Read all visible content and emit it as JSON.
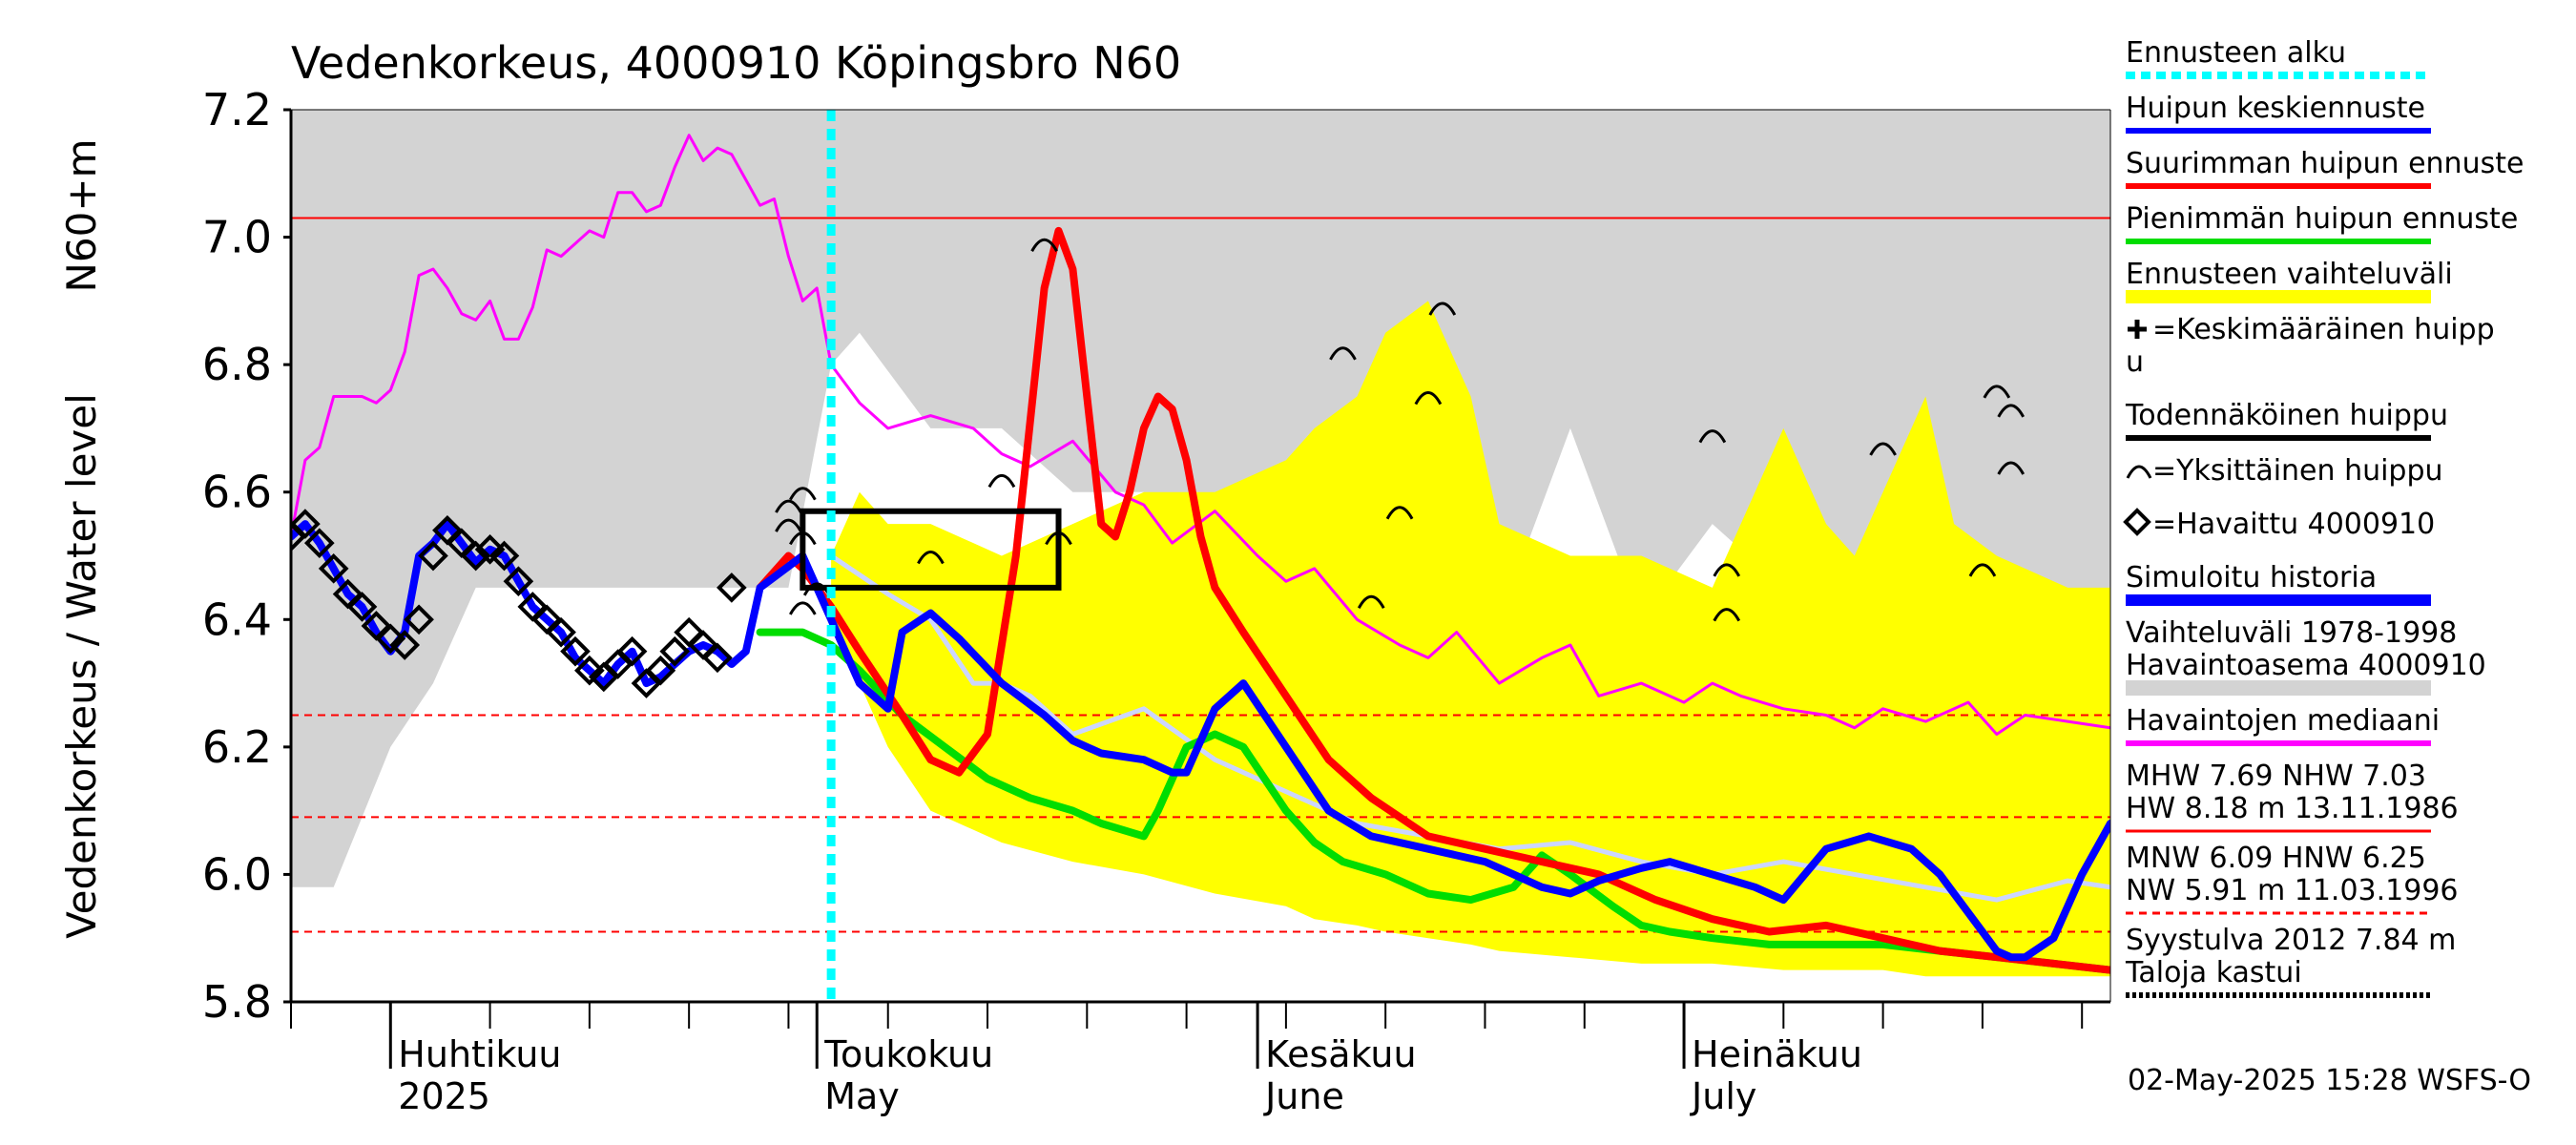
{
  "chart_data": {
    "type": "line",
    "title": "Vedenkorkeus, 4000910 Köpingsbro N60",
    "ylabel_1": "N60+m",
    "ylabel_2": "Vedenkorkeus / Water level",
    "ylim": [
      5.8,
      7.2
    ],
    "yticks": [
      "5.8",
      "6.0",
      "6.2",
      "6.4",
      "6.6",
      "6.8",
      "7.0",
      "7.2"
    ],
    "xlim": [
      "2025-03-25",
      "2025-08-01"
    ],
    "month_labels": [
      {
        "fi": "Huhtikuu",
        "en": "2025",
        "date": "2025-04-01"
      },
      {
        "fi": "Toukokuu",
        "en": "May",
        "date": "2025-05-01"
      },
      {
        "fi": "Kesäkuu",
        "en": "June",
        "date": "2025-06-01"
      },
      {
        "fi": "Heinäkuu",
        "en": "July",
        "date": "2025-07-01"
      }
    ],
    "forecast_start": "2025-05-02",
    "reference_lines": [
      {
        "name": "NHW",
        "value": 7.03,
        "style": "solid",
        "color": "#ff0000"
      },
      {
        "name": "HNW",
        "value": 6.25,
        "style": "dashed",
        "color": "#ff0000"
      },
      {
        "name": "MNW",
        "value": 6.09,
        "style": "dashed",
        "color": "#ff0000"
      },
      {
        "name": "NW",
        "value": 5.91,
        "style": "dashed",
        "color": "#ff0000"
      }
    ],
    "variation_band_history": {
      "days": [
        0,
        3,
        7,
        10,
        12,
        13,
        15,
        20,
        25,
        30,
        35,
        38,
        40,
        45,
        50,
        55,
        60,
        65,
        70,
        75,
        80,
        85,
        90,
        95,
        100,
        105,
        110,
        115,
        120,
        125,
        128
      ],
      "upper": [
        7.2,
        7.2,
        7.2,
        7.2,
        7.2,
        7.2,
        7.2,
        7.2,
        7.2,
        7.2,
        7.2,
        7.2,
        7.2,
        7.2,
        7.2,
        7.2,
        7.2,
        7.2,
        7.2,
        7.2,
        7.2,
        7.2,
        7.2,
        7.2,
        7.2,
        7.2,
        7.2,
        7.2,
        7.2,
        7.2,
        7.2
      ],
      "lower": [
        5.98,
        5.98,
        6.2,
        6.3,
        6.4,
        6.45,
        6.45,
        6.45,
        6.45,
        6.45,
        6.45,
        6.8,
        6.85,
        6.7,
        6.7,
        6.6,
        6.6,
        6.55,
        6.6,
        6.5,
        6.55,
        6.4,
        6.7,
        6.4,
        6.55,
        6.45,
        6.5,
        6.45,
        6.45,
        6.4,
        6.45
      ]
    },
    "forecast_range": {
      "days": [
        38,
        40,
        42,
        45,
        50,
        55,
        60,
        65,
        70,
        72,
        75,
        77,
        80,
        83,
        85,
        90,
        95,
        100,
        105,
        108,
        110,
        112,
        115,
        117,
        120,
        125,
        128
      ],
      "upper": [
        6.5,
        6.6,
        6.55,
        6.55,
        6.5,
        6.55,
        6.6,
        6.6,
        6.65,
        6.7,
        6.75,
        6.85,
        6.9,
        6.75,
        6.55,
        6.5,
        6.5,
        6.45,
        6.7,
        6.55,
        6.5,
        6.6,
        6.75,
        6.55,
        6.5,
        6.45,
        6.45
      ],
      "lower": [
        6.4,
        6.3,
        6.2,
        6.1,
        6.05,
        6.02,
        6.0,
        5.97,
        5.95,
        5.93,
        5.92,
        5.91,
        5.9,
        5.89,
        5.88,
        5.87,
        5.86,
        5.86,
        5.85,
        5.85,
        5.85,
        5.85,
        5.84,
        5.84,
        5.84,
        5.84,
        5.84
      ]
    },
    "series": [
      {
        "name": "Havaintojen mediaani",
        "color": "#ff00ff",
        "x_days": [
          0,
          1,
          2,
          3,
          4,
          5,
          6,
          7,
          8,
          9,
          10,
          11,
          12,
          13,
          14,
          15,
          16,
          17,
          18,
          19,
          20,
          21,
          22,
          23,
          24,
          25,
          26,
          27,
          28,
          29,
          30,
          31,
          32,
          33,
          34,
          35,
          36,
          37,
          38,
          40,
          42,
          45,
          48,
          50,
          52,
          55,
          58,
          60,
          62,
          65,
          68,
          70,
          72,
          75,
          78,
          80,
          82,
          85,
          88,
          90,
          92,
          95,
          98,
          100,
          102,
          105,
          108,
          110,
          112,
          115,
          118,
          120,
          122,
          125,
          128
        ],
        "y": [
          6.53,
          6.65,
          6.67,
          6.75,
          6.75,
          6.75,
          6.74,
          6.76,
          6.82,
          6.94,
          6.95,
          6.92,
          6.88,
          6.87,
          6.9,
          6.84,
          6.84,
          6.89,
          6.98,
          6.97,
          6.99,
          7.01,
          7.0,
          7.07,
          7.07,
          7.04,
          7.05,
          7.11,
          7.16,
          7.12,
          7.14,
          7.13,
          7.09,
          7.05,
          7.06,
          6.97,
          6.9,
          6.92,
          6.8,
          6.74,
          6.7,
          6.72,
          6.7,
          6.66,
          6.64,
          6.68,
          6.6,
          6.58,
          6.52,
          6.57,
          6.5,
          6.46,
          6.48,
          6.4,
          6.36,
          6.34,
          6.38,
          6.3,
          6.34,
          6.36,
          6.28,
          6.3,
          6.27,
          6.3,
          6.28,
          6.26,
          6.25,
          6.23,
          6.26,
          6.24,
          6.27,
          6.22,
          6.25,
          6.24,
          6.23
        ]
      },
      {
        "name": "Simuloitu historia",
        "color": "#ccd6ff",
        "x_days": [
          38,
          40,
          42,
          45,
          48,
          50,
          52,
          55,
          60,
          65,
          70,
          75,
          80,
          85,
          90,
          95,
          100,
          105,
          110,
          115,
          120,
          125,
          128
        ],
        "y": [
          6.5,
          6.47,
          6.44,
          6.4,
          6.3,
          6.3,
          6.28,
          6.22,
          6.26,
          6.18,
          6.13,
          6.08,
          6.06,
          6.04,
          6.05,
          6.02,
          6.0,
          6.02,
          6.0,
          5.98,
          5.96,
          5.99,
          5.98
        ]
      },
      {
        "name": "Pienimmän huipun ennuste",
        "color": "#00dd00",
        "x_days": [
          33,
          36,
          38,
          40,
          43,
          46,
          49,
          52,
          55,
          57,
          60,
          61,
          63,
          65,
          67,
          70,
          72,
          74,
          77,
          80,
          83,
          86,
          88,
          90,
          93,
          95,
          97,
          100,
          104,
          108,
          112,
          116,
          120,
          124,
          128
        ],
        "y": [
          6.38,
          6.38,
          6.36,
          6.32,
          6.25,
          6.2,
          6.15,
          6.12,
          6.1,
          6.08,
          6.06,
          6.1,
          6.2,
          6.22,
          6.2,
          6.1,
          6.05,
          6.02,
          6.0,
          5.97,
          5.96,
          5.98,
          6.03,
          6.0,
          5.95,
          5.92,
          5.91,
          5.9,
          5.89,
          5.89,
          5.89,
          5.88,
          5.87,
          5.86,
          5.85
        ]
      },
      {
        "name": "Suurimman huipun ennuste",
        "color": "#ff0000",
        "x_days": [
          33,
          35,
          36,
          38,
          40,
          43,
          45,
          47,
          49,
          51,
          53,
          54,
          55,
          56,
          57,
          58,
          59,
          60,
          61,
          62,
          63,
          64,
          65,
          67,
          70,
          73,
          76,
          80,
          84,
          88,
          92,
          96,
          100,
          104,
          108,
          112,
          116,
          120,
          124,
          128
        ],
        "y": [
          6.45,
          6.5,
          6.48,
          6.42,
          6.35,
          6.25,
          6.18,
          6.16,
          6.22,
          6.5,
          6.92,
          7.01,
          6.95,
          6.75,
          6.55,
          6.53,
          6.6,
          6.7,
          6.75,
          6.73,
          6.65,
          6.53,
          6.45,
          6.38,
          6.28,
          6.18,
          6.12,
          6.06,
          6.04,
          6.02,
          6.0,
          5.96,
          5.93,
          5.91,
          5.92,
          5.9,
          5.88,
          5.87,
          5.86,
          5.85
        ]
      },
      {
        "name": "Huipun keskiennuste",
        "color": "#0000ff",
        "x_days": [
          0,
          1,
          2,
          3,
          4,
          5,
          6,
          7,
          8,
          9,
          10,
          11,
          12,
          13,
          14,
          15,
          16,
          17,
          18,
          19,
          20,
          21,
          22,
          23,
          24,
          25,
          26,
          27,
          28,
          29,
          30,
          31,
          32,
          33,
          36,
          38,
          40,
          42,
          43,
          45,
          47,
          50,
          53,
          55,
          57,
          60,
          62,
          63,
          65,
          67,
          70,
          73,
          76,
          80,
          84,
          86,
          88,
          90,
          92,
          95,
          97,
          100,
          103,
          105,
          108,
          111,
          114,
          116,
          117,
          118,
          119,
          120,
          121,
          122,
          124,
          126,
          128
        ],
        "y": [
          6.53,
          6.55,
          6.52,
          6.48,
          6.44,
          6.42,
          6.38,
          6.35,
          6.38,
          6.5,
          6.52,
          6.55,
          6.52,
          6.49,
          6.51,
          6.5,
          6.46,
          6.42,
          6.4,
          6.38,
          6.34,
          6.32,
          6.3,
          6.33,
          6.35,
          6.3,
          6.31,
          6.33,
          6.35,
          6.36,
          6.35,
          6.33,
          6.35,
          6.45,
          6.5,
          6.4,
          6.3,
          6.26,
          6.38,
          6.41,
          6.37,
          6.3,
          6.25,
          6.21,
          6.19,
          6.18,
          6.16,
          6.16,
          6.26,
          6.3,
          6.2,
          6.1,
          6.06,
          6.04,
          6.02,
          6.0,
          5.98,
          5.97,
          5.99,
          6.01,
          6.02,
          6.0,
          5.98,
          5.96,
          6.04,
          6.06,
          6.04,
          6.0,
          5.97,
          5.94,
          5.91,
          5.88,
          5.87,
          5.87,
          5.9,
          6.0,
          6.08
        ]
      }
    ],
    "observed": {
      "name": "Havaittu 4000910",
      "x_days": [
        0,
        1,
        2,
        3,
        4,
        5,
        6,
        7,
        8,
        9,
        10,
        11,
        12,
        13,
        14,
        15,
        16,
        17,
        18,
        19,
        20,
        21,
        22,
        23,
        24,
        25,
        26,
        27,
        28,
        29,
        30,
        31
      ],
      "y": [
        6.53,
        6.55,
        6.52,
        6.48,
        6.44,
        6.42,
        6.39,
        6.37,
        6.36,
        6.4,
        6.5,
        6.54,
        6.52,
        6.5,
        6.51,
        6.5,
        6.46,
        6.42,
        6.4,
        6.38,
        6.35,
        6.32,
        6.31,
        6.33,
        6.35,
        6.3,
        6.32,
        6.35,
        6.38,
        6.36,
        6.34,
        6.45
      ]
    },
    "probable_peak_box": {
      "x_range_days": [
        36,
        54
      ],
      "y_range": [
        6.45,
        6.57
      ],
      "color": "#000000"
    },
    "single_peaks": [
      {
        "day": 35,
        "value": 6.58
      },
      {
        "day": 35,
        "value": 6.55
      },
      {
        "day": 36,
        "value": 6.6
      },
      {
        "day": 36,
        "value": 6.53
      },
      {
        "day": 37,
        "value": 6.45
      },
      {
        "day": 36,
        "value": 6.42
      },
      {
        "day": 45,
        "value": 6.5
      },
      {
        "day": 50,
        "value": 6.62
      },
      {
        "day": 53,
        "value": 6.99
      },
      {
        "day": 54,
        "value": 6.53
      },
      {
        "day": 74,
        "value": 6.82
      },
      {
        "day": 76,
        "value": 6.43
      },
      {
        "day": 78,
        "value": 6.57
      },
      {
        "day": 80,
        "value": 6.75
      },
      {
        "day": 81,
        "value": 6.89
      },
      {
        "day": 100,
        "value": 6.69
      },
      {
        "day": 101,
        "value": 6.48
      },
      {
        "day": 101,
        "value": 6.41
      },
      {
        "day": 112,
        "value": 6.67
      },
      {
        "day": 119,
        "value": 6.48
      },
      {
        "day": 120,
        "value": 6.76
      },
      {
        "day": 121,
        "value": 6.73
      },
      {
        "day": 121,
        "value": 6.64
      }
    ],
    "legend": [
      {
        "label": "Ennusteen alku",
        "color": "#00ffff",
        "kind": "dotted"
      },
      {
        "label": "Huipun keskiennuste",
        "color": "#0000ff",
        "kind": "line"
      },
      {
        "label": "Suurimman huipun ennuste",
        "color": "#ff0000",
        "kind": "line"
      },
      {
        "label": "Pienimmän huipun ennuste",
        "color": "#00dd00",
        "kind": "line"
      },
      {
        "label": "Ennusteen vaihteluväli",
        "color": "#ffff00",
        "kind": "thick"
      },
      {
        "label": "=Keskimääräinen huipp",
        "label2": "u",
        "color": "#000000",
        "kind": "plus"
      },
      {
        "label": "Todennäköinen huippu",
        "color": "#000000",
        "kind": "line"
      },
      {
        "label": "=Yksittäinen huippu",
        "color": "#000000",
        "kind": "arc"
      },
      {
        "label": "=Havaittu 4000910",
        "color": "#000000",
        "kind": "diamond"
      },
      {
        "label": "Simuloitu historia",
        "color": "#0000ff",
        "kind": "thickblue"
      },
      {
        "label": "Vaihteluväli 1978-1998",
        "label2": " Havaintoasema 4000910",
        "color": "#d3d3d3",
        "kind": "grey"
      },
      {
        "label": "Havaintojen mediaani",
        "color": "#ff00ff",
        "kind": "line"
      }
    ],
    "stats": [
      {
        "line1": "MHW   7.69 NHW   7.03",
        "line2": "HW   8.18 m 13.11.1986",
        "color": "#ff0000",
        "kind": "solid"
      },
      {
        "line1": "MNW   6.09 HNW   6.25",
        "line2": "NW   5.91 m 11.03.1996",
        "color": "#ff0000",
        "kind": "dashed"
      },
      {
        "line1": "Syystulva 2012 7.84 m",
        "line2": "Taloja kastui",
        "color": "#000000",
        "kind": "dotted"
      }
    ],
    "footer": "02-May-2025 15:28 WSFS-O"
  }
}
